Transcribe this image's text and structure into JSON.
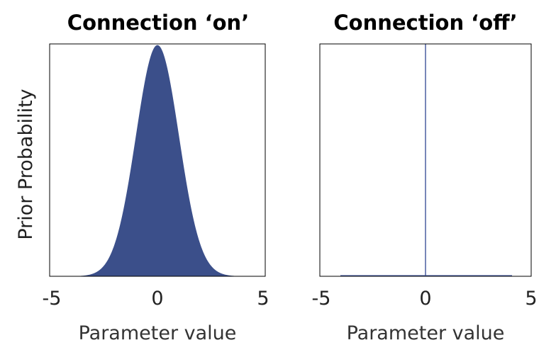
{
  "chart_data": [
    {
      "type": "area",
      "title": "Connection ‘on’",
      "xlabel": "Parameter value",
      "ylabel": "Prior Probability",
      "xlim": [
        -5,
        5
      ],
      "xticks": [
        "-5",
        "0",
        "5"
      ],
      "distribution": "normal",
      "mean": 0,
      "sd": 1,
      "fill_color": "#3b4f8a",
      "grid": false
    },
    {
      "type": "line",
      "title": "Connection ‘off’",
      "xlabel": "Parameter value",
      "ylabel": "",
      "xlim": [
        -5,
        5
      ],
      "xticks": [
        "-5",
        "0",
        "5"
      ],
      "distribution": "point-mass",
      "mean": 0,
      "line_color": "#4a5fa0",
      "grid": false
    }
  ]
}
